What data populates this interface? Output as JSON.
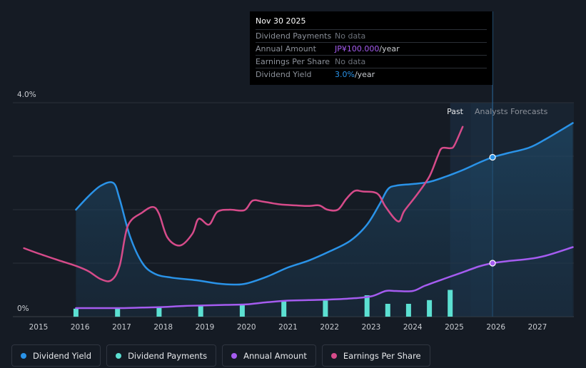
{
  "tooltip": {
    "date": "Nov 30 2025",
    "rows": [
      {
        "label": "Dividend Payments",
        "value": "No data"
      },
      {
        "label": "Annual Amount",
        "value": "JP¥100.000",
        "suffix": "/year"
      },
      {
        "label": "Earnings Per Share",
        "value": "No data"
      },
      {
        "label": "Dividend Yield",
        "value": "3.0%",
        "suffix": "/year"
      }
    ]
  },
  "legend": [
    {
      "label": "Dividend Yield",
      "color": "#2a93e8"
    },
    {
      "label": "Dividend Payments",
      "color": "#5ce0d2"
    },
    {
      "label": "Annual Amount",
      "color": "#a55cf0"
    },
    {
      "label": "Earnings Per Share",
      "color": "#d64b8a"
    }
  ],
  "chart_data": {
    "type": "line",
    "title": "",
    "x_range": [
      2014.75,
      2027.85
    ],
    "ylim": [
      0,
      4.0
    ],
    "y_tick_labels": [
      "4.0%",
      "0%"
    ],
    "x_ticks": [
      "2015",
      "2016",
      "2017",
      "2018",
      "2019",
      "2020",
      "2021",
      "2022",
      "2023",
      "2024",
      "2025",
      "2026",
      "2027"
    ],
    "past_label": "Past",
    "forecast_label": "Analysts Forecasts",
    "forecast_start": 2025.4,
    "cursor_x": 2025.92,
    "series": [
      {
        "name": "Dividend Yield",
        "color": "#2a93e8",
        "unit": "%",
        "points": [
          [
            2015.9,
            2.0
          ],
          [
            2016.2,
            2.25
          ],
          [
            2016.5,
            2.45
          ],
          [
            2016.8,
            2.5
          ],
          [
            2016.95,
            2.2
          ],
          [
            2017.2,
            1.5
          ],
          [
            2017.5,
            1.0
          ],
          [
            2017.8,
            0.8
          ],
          [
            2018.2,
            0.73
          ],
          [
            2018.8,
            0.68
          ],
          [
            2019.3,
            0.62
          ],
          [
            2019.7,
            0.6
          ],
          [
            2020.0,
            0.62
          ],
          [
            2020.5,
            0.75
          ],
          [
            2021.0,
            0.92
          ],
          [
            2021.5,
            1.05
          ],
          [
            2022.0,
            1.22
          ],
          [
            2022.5,
            1.42
          ],
          [
            2022.9,
            1.72
          ],
          [
            2023.2,
            2.1
          ],
          [
            2023.4,
            2.38
          ],
          [
            2023.6,
            2.45
          ],
          [
            2024.0,
            2.48
          ],
          [
            2024.4,
            2.52
          ],
          [
            2024.8,
            2.62
          ],
          [
            2025.2,
            2.74
          ],
          [
            2025.6,
            2.88
          ],
          [
            2025.92,
            2.98
          ],
          [
            2026.3,
            3.06
          ],
          [
            2026.8,
            3.16
          ],
          [
            2027.2,
            3.32
          ],
          [
            2027.85,
            3.62
          ]
        ]
      },
      {
        "name": "Earnings Per Share",
        "color": "#d64b8a",
        "unit": "JP¥",
        "points": [
          [
            2014.65,
            1.28
          ],
          [
            2015.0,
            1.18
          ],
          [
            2015.5,
            1.05
          ],
          [
            2015.9,
            0.95
          ],
          [
            2016.2,
            0.85
          ],
          [
            2016.5,
            0.7
          ],
          [
            2016.75,
            0.68
          ],
          [
            2016.95,
            0.95
          ],
          [
            2017.15,
            1.7
          ],
          [
            2017.5,
            1.95
          ],
          [
            2017.75,
            2.05
          ],
          [
            2017.9,
            1.92
          ],
          [
            2018.1,
            1.48
          ],
          [
            2018.4,
            1.33
          ],
          [
            2018.7,
            1.55
          ],
          [
            2018.85,
            1.83
          ],
          [
            2019.1,
            1.72
          ],
          [
            2019.3,
            1.96
          ],
          [
            2019.6,
            2.0
          ],
          [
            2019.95,
            1.99
          ],
          [
            2020.15,
            2.17
          ],
          [
            2020.4,
            2.15
          ],
          [
            2020.8,
            2.1
          ],
          [
            2021.2,
            2.08
          ],
          [
            2021.5,
            2.07
          ],
          [
            2021.75,
            2.08
          ],
          [
            2021.95,
            2.0
          ],
          [
            2022.2,
            2.0
          ],
          [
            2022.4,
            2.2
          ],
          [
            2022.6,
            2.35
          ],
          [
            2022.8,
            2.34
          ],
          [
            2023.15,
            2.3
          ],
          [
            2023.35,
            2.05
          ],
          [
            2023.65,
            1.78
          ],
          [
            2023.8,
            1.98
          ],
          [
            2024.1,
            2.28
          ],
          [
            2024.4,
            2.62
          ],
          [
            2024.6,
            3.0
          ],
          [
            2024.7,
            3.15
          ],
          [
            2024.9,
            3.15
          ],
          [
            2025.0,
            3.2
          ],
          [
            2025.2,
            3.55
          ]
        ]
      },
      {
        "name": "Annual Amount",
        "color": "#a55cf0",
        "unit": "JP¥",
        "points": [
          [
            2015.9,
            0.16
          ],
          [
            2016.5,
            0.16
          ],
          [
            2017.0,
            0.16
          ],
          [
            2017.5,
            0.17
          ],
          [
            2018.0,
            0.18
          ],
          [
            2018.5,
            0.2
          ],
          [
            2019.0,
            0.21
          ],
          [
            2019.5,
            0.22
          ],
          [
            2020.0,
            0.23
          ],
          [
            2020.5,
            0.27
          ],
          [
            2021.0,
            0.3
          ],
          [
            2021.5,
            0.31
          ],
          [
            2022.0,
            0.32
          ],
          [
            2022.5,
            0.34
          ],
          [
            2023.0,
            0.38
          ],
          [
            2023.35,
            0.48
          ],
          [
            2023.6,
            0.48
          ],
          [
            2024.0,
            0.48
          ],
          [
            2024.3,
            0.58
          ],
          [
            2024.8,
            0.72
          ],
          [
            2025.2,
            0.83
          ],
          [
            2025.6,
            0.94
          ],
          [
            2025.92,
            1.0
          ],
          [
            2026.3,
            1.04
          ],
          [
            2026.8,
            1.08
          ],
          [
            2027.2,
            1.14
          ],
          [
            2027.85,
            1.3
          ]
        ]
      }
    ],
    "bars": {
      "name": "Dividend Payments",
      "color": "#5ce0d2",
      "points": [
        [
          2015.9,
          0.15
        ],
        [
          2016.9,
          0.15
        ],
        [
          2017.9,
          0.18
        ],
        [
          2018.9,
          0.2
        ],
        [
          2019.9,
          0.22
        ],
        [
          2020.9,
          0.28
        ],
        [
          2021.9,
          0.3
        ],
        [
          2022.9,
          0.4
        ],
        [
          2023.4,
          0.24
        ],
        [
          2023.9,
          0.24
        ],
        [
          2024.4,
          0.31
        ],
        [
          2024.9,
          0.5
        ]
      ]
    },
    "markers": [
      {
        "series": "Dividend Yield",
        "x": 2025.92,
        "y": 2.98
      },
      {
        "series": "Annual Amount",
        "x": 2025.92,
        "y": 1.0
      }
    ]
  }
}
